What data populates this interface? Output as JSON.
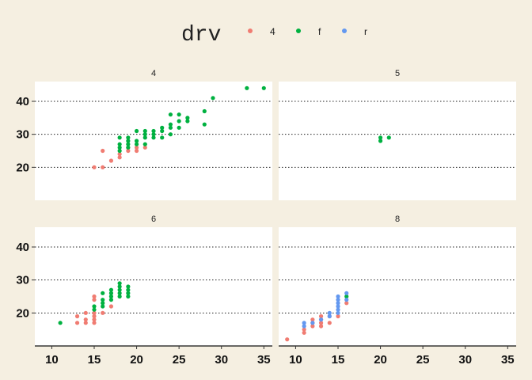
{
  "chart_data": {
    "type": "scatter",
    "facet_by": "cyl",
    "legend": {
      "title": "drv",
      "position": "top",
      "entries": [
        {
          "label": "4",
          "color": "#f07c72"
        },
        {
          "label": "f",
          "color": "#00b140"
        },
        {
          "label": "r",
          "color": "#6398f0"
        }
      ]
    },
    "xlim": [
      8,
      36
    ],
    "ylim": [
      10,
      46
    ],
    "x_ticks": [
      10,
      15,
      20,
      25,
      30,
      35
    ],
    "y_ticks": [
      20,
      30,
      40
    ],
    "gridlines": "horizontal dotted",
    "panels": [
      {
        "label": "4",
        "points": [
          {
            "drv": "4",
            "x": 15,
            "y": 20
          },
          {
            "drv": "4",
            "x": 16,
            "y": 20
          },
          {
            "drv": "4",
            "x": 16,
            "y": 25
          },
          {
            "drv": "4",
            "x": 17,
            "y": 22
          },
          {
            "drv": "4",
            "x": 18,
            "y": 23
          },
          {
            "drv": "4",
            "x": 18,
            "y": 24
          },
          {
            "drv": "4",
            "x": 19,
            "y": 25
          },
          {
            "drv": "4",
            "x": 19,
            "y": 26
          },
          {
            "drv": "4",
            "x": 20,
            "y": 25
          },
          {
            "drv": "4",
            "x": 20,
            "y": 26
          },
          {
            "drv": "4",
            "x": 21,
            "y": 26
          },
          {
            "drv": "f",
            "x": 18,
            "y": 25
          },
          {
            "drv": "f",
            "x": 18,
            "y": 26
          },
          {
            "drv": "f",
            "x": 18,
            "y": 27
          },
          {
            "drv": "f",
            "x": 18,
            "y": 29
          },
          {
            "drv": "f",
            "x": 19,
            "y": 26
          },
          {
            "drv": "f",
            "x": 19,
            "y": 27
          },
          {
            "drv": "f",
            "x": 19,
            "y": 28
          },
          {
            "drv": "f",
            "x": 19,
            "y": 29
          },
          {
            "drv": "f",
            "x": 20,
            "y": 27
          },
          {
            "drv": "f",
            "x": 20,
            "y": 28
          },
          {
            "drv": "f",
            "x": 20,
            "y": 31
          },
          {
            "drv": "f",
            "x": 21,
            "y": 27
          },
          {
            "drv": "f",
            "x": 21,
            "y": 29
          },
          {
            "drv": "f",
            "x": 21,
            "y": 30
          },
          {
            "drv": "f",
            "x": 21,
            "y": 31
          },
          {
            "drv": "f",
            "x": 22,
            "y": 29
          },
          {
            "drv": "f",
            "x": 22,
            "y": 30
          },
          {
            "drv": "f",
            "x": 22,
            "y": 31
          },
          {
            "drv": "f",
            "x": 23,
            "y": 29
          },
          {
            "drv": "f",
            "x": 23,
            "y": 31
          },
          {
            "drv": "f",
            "x": 23,
            "y": 32
          },
          {
            "drv": "f",
            "x": 24,
            "y": 30
          },
          {
            "drv": "f",
            "x": 24,
            "y": 32
          },
          {
            "drv": "f",
            "x": 24,
            "y": 33
          },
          {
            "drv": "f",
            "x": 24,
            "y": 36
          },
          {
            "drv": "f",
            "x": 25,
            "y": 32
          },
          {
            "drv": "f",
            "x": 25,
            "y": 34
          },
          {
            "drv": "f",
            "x": 25,
            "y": 36
          },
          {
            "drv": "f",
            "x": 26,
            "y": 34
          },
          {
            "drv": "f",
            "x": 26,
            "y": 35
          },
          {
            "drv": "f",
            "x": 28,
            "y": 33
          },
          {
            "drv": "f",
            "x": 28,
            "y": 37
          },
          {
            "drv": "f",
            "x": 29,
            "y": 41
          },
          {
            "drv": "f",
            "x": 33,
            "y": 44
          },
          {
            "drv": "f",
            "x": 35,
            "y": 44
          }
        ]
      },
      {
        "label": "5",
        "points": [
          {
            "drv": "f",
            "x": 20,
            "y": 28
          },
          {
            "drv": "f",
            "x": 20,
            "y": 29
          },
          {
            "drv": "f",
            "x": 21,
            "y": 29
          }
        ]
      },
      {
        "label": "6",
        "points": [
          {
            "drv": "4",
            "x": 13,
            "y": 17
          },
          {
            "drv": "4",
            "x": 13,
            "y": 19
          },
          {
            "drv": "4",
            "x": 14,
            "y": 17
          },
          {
            "drv": "4",
            "x": 14,
            "y": 18
          },
          {
            "drv": "4",
            "x": 14,
            "y": 20
          },
          {
            "drv": "4",
            "x": 15,
            "y": 17
          },
          {
            "drv": "4",
            "x": 15,
            "y": 18
          },
          {
            "drv": "4",
            "x": 15,
            "y": 19
          },
          {
            "drv": "4",
            "x": 15,
            "y": 20
          },
          {
            "drv": "4",
            "x": 15,
            "y": 24
          },
          {
            "drv": "4",
            "x": 15,
            "y": 25
          },
          {
            "drv": "4",
            "x": 16,
            "y": 20
          },
          {
            "drv": "4",
            "x": 17,
            "y": 22
          },
          {
            "drv": "f",
            "x": 11,
            "y": 17
          },
          {
            "drv": "f",
            "x": 15,
            "y": 21
          },
          {
            "drv": "f",
            "x": 15,
            "y": 22
          },
          {
            "drv": "f",
            "x": 16,
            "y": 22
          },
          {
            "drv": "f",
            "x": 16,
            "y": 23
          },
          {
            "drv": "f",
            "x": 16,
            "y": 24
          },
          {
            "drv": "f",
            "x": 16,
            "y": 26
          },
          {
            "drv": "f",
            "x": 17,
            "y": 24
          },
          {
            "drv": "f",
            "x": 17,
            "y": 25
          },
          {
            "drv": "f",
            "x": 17,
            "y": 26
          },
          {
            "drv": "f",
            "x": 17,
            "y": 27
          },
          {
            "drv": "f",
            "x": 18,
            "y": 25
          },
          {
            "drv": "f",
            "x": 18,
            "y": 26
          },
          {
            "drv": "f",
            "x": 18,
            "y": 27
          },
          {
            "drv": "f",
            "x": 18,
            "y": 28
          },
          {
            "drv": "f",
            "x": 18,
            "y": 29
          },
          {
            "drv": "f",
            "x": 19,
            "y": 25
          },
          {
            "drv": "f",
            "x": 19,
            "y": 26
          },
          {
            "drv": "f",
            "x": 19,
            "y": 27
          },
          {
            "drv": "f",
            "x": 19,
            "y": 28
          }
        ]
      },
      {
        "label": "8",
        "points": [
          {
            "drv": "4",
            "x": 9,
            "y": 12
          },
          {
            "drv": "4",
            "x": 11,
            "y": 14
          },
          {
            "drv": "4",
            "x": 11,
            "y": 15
          },
          {
            "drv": "4",
            "x": 12,
            "y": 16
          },
          {
            "drv": "4",
            "x": 12,
            "y": 17
          },
          {
            "drv": "4",
            "x": 12,
            "y": 18
          },
          {
            "drv": "4",
            "x": 13,
            "y": 16
          },
          {
            "drv": "4",
            "x": 13,
            "y": 17
          },
          {
            "drv": "4",
            "x": 13,
            "y": 18
          },
          {
            "drv": "4",
            "x": 13,
            "y": 19
          },
          {
            "drv": "4",
            "x": 14,
            "y": 17
          },
          {
            "drv": "4",
            "x": 14,
            "y": 19
          },
          {
            "drv": "4",
            "x": 15,
            "y": 19
          },
          {
            "drv": "4",
            "x": 16,
            "y": 23
          },
          {
            "drv": "f",
            "x": 16,
            "y": 25
          },
          {
            "drv": "r",
            "x": 11,
            "y": 16
          },
          {
            "drv": "r",
            "x": 11,
            "y": 17
          },
          {
            "drv": "r",
            "x": 12,
            "y": 17
          },
          {
            "drv": "r",
            "x": 13,
            "y": 18
          },
          {
            "drv": "r",
            "x": 14,
            "y": 19
          },
          {
            "drv": "r",
            "x": 14,
            "y": 20
          },
          {
            "drv": "r",
            "x": 15,
            "y": 20
          },
          {
            "drv": "r",
            "x": 15,
            "y": 21
          },
          {
            "drv": "r",
            "x": 15,
            "y": 22
          },
          {
            "drv": "r",
            "x": 15,
            "y": 23
          },
          {
            "drv": "r",
            "x": 15,
            "y": 24
          },
          {
            "drv": "r",
            "x": 15,
            "y": 25
          },
          {
            "drv": "r",
            "x": 16,
            "y": 24
          },
          {
            "drv": "r",
            "x": 16,
            "y": 26
          }
        ]
      }
    ]
  }
}
